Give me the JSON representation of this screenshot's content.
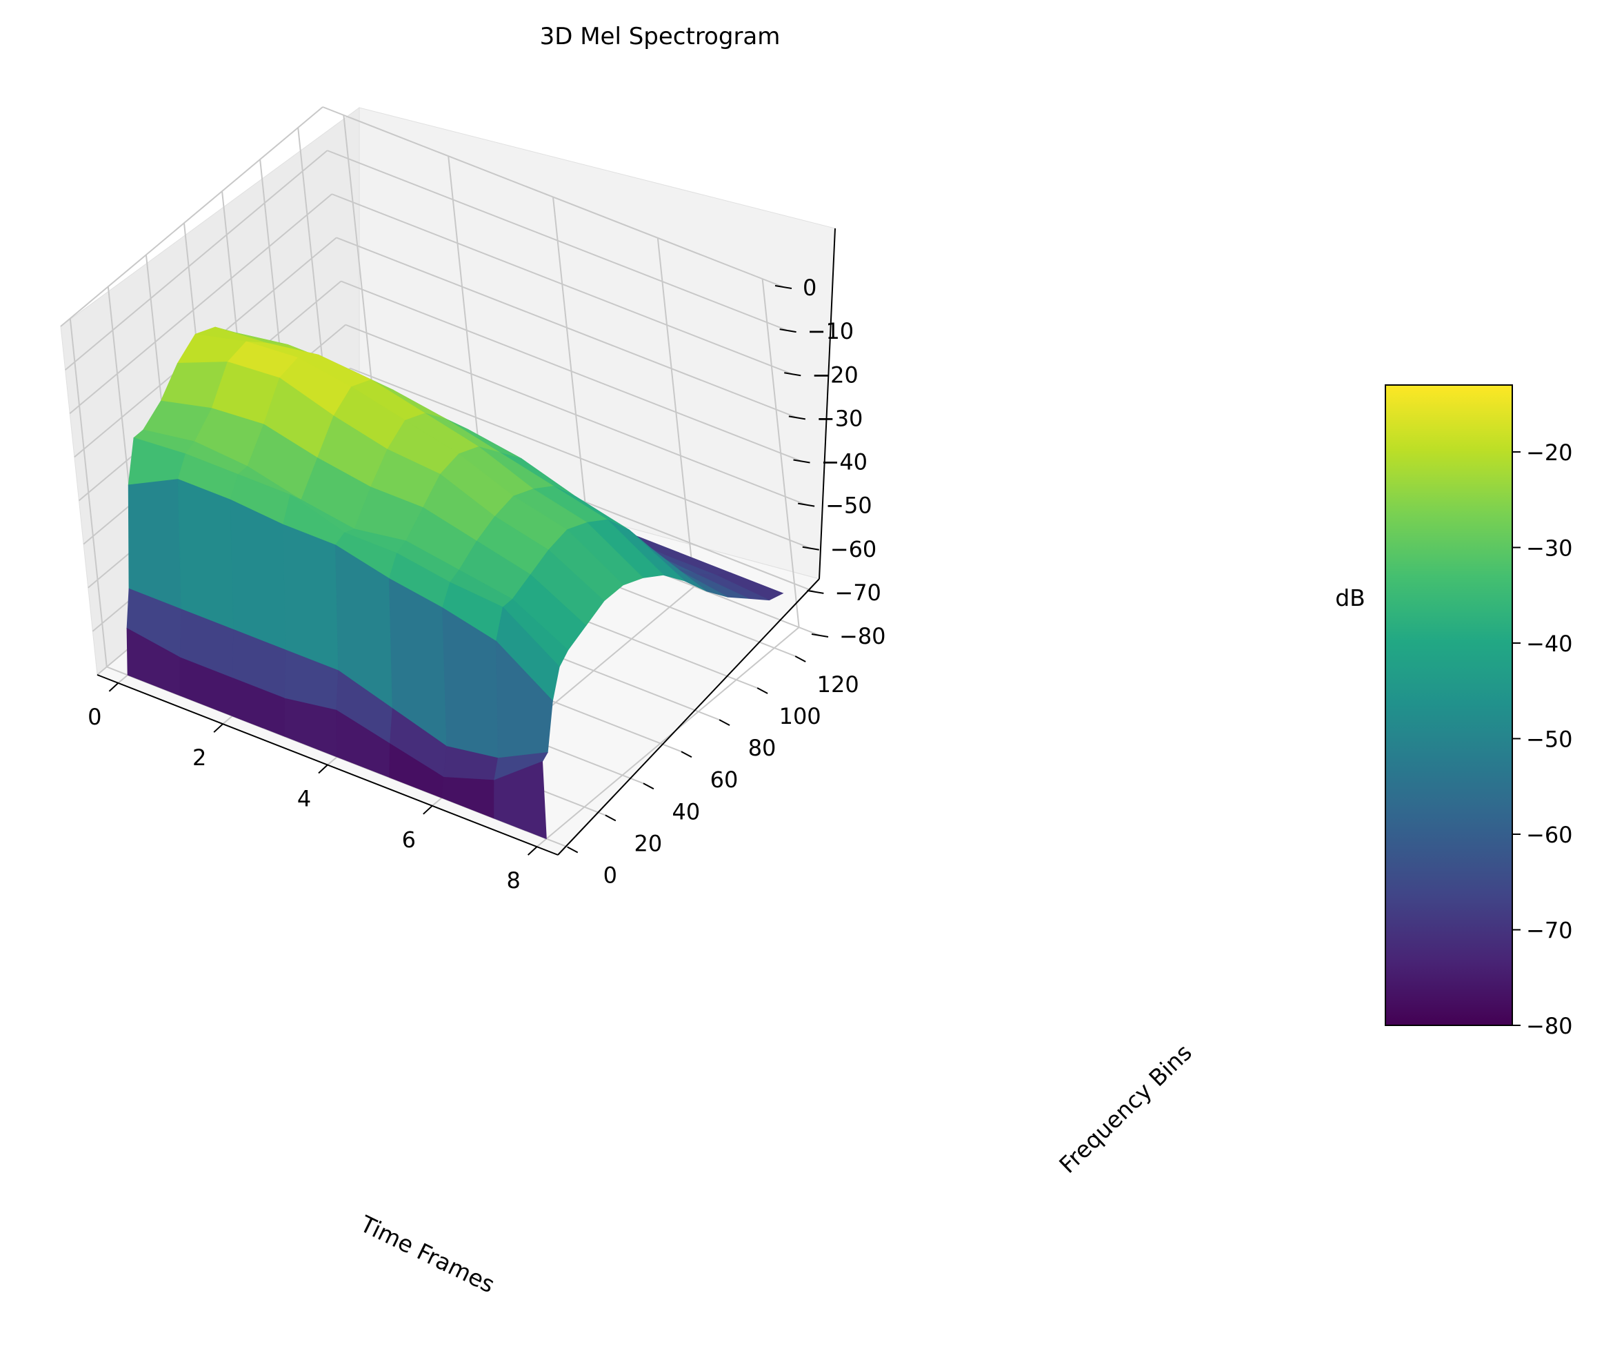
{
  "chart_data": {
    "type": "surface3d",
    "title": "3D Mel Spectrogram",
    "xlabel": "Time Frames",
    "ylabel": "Frequency Bins",
    "zlabel": "dB",
    "colormap": "viridis",
    "xlim": [
      -0.4,
      8.4
    ],
    "ylim": [
      -5,
      133
    ],
    "zlim": [
      -80,
      0
    ],
    "x_ticks": [
      0,
      2,
      4,
      6,
      8
    ],
    "y_ticks": [
      0,
      20,
      40,
      60,
      80,
      100,
      120
    ],
    "z_ticks": [
      0,
      -10,
      -20,
      -30,
      -40,
      -50,
      -60,
      -70,
      -80
    ],
    "x_tick_labels": [
      "0",
      "2",
      "4",
      "6",
      "8"
    ],
    "y_tick_labels": [
      "0",
      "20",
      "40",
      "60",
      "80",
      "100",
      "120"
    ],
    "z_tick_labels": [
      "0",
      "−10",
      "−20",
      "−30",
      "−40",
      "−50",
      "−60",
      "−70",
      "−80"
    ],
    "time_frames": [
      0,
      1,
      2,
      3,
      4,
      5,
      6,
      7,
      8
    ],
    "frequency_bins": [
      0,
      2,
      5,
      10,
      15,
      20,
      30,
      40,
      50,
      60,
      70,
      80,
      90,
      100,
      110,
      120,
      127
    ],
    "values_db": [
      [
        -80,
        -70,
        -62,
        -40,
        -31,
        -31,
        -28,
        -23,
        -20,
        -22,
        -27,
        -32,
        -40,
        -52,
        -60,
        -66,
        -70
      ],
      [
        -80,
        -72,
        -62,
        -34,
        -30,
        -29,
        -25,
        -18,
        -17,
        -21,
        -25,
        -33,
        -41,
        -51,
        -60,
        -66,
        -70
      ],
      [
        -80,
        -72,
        -62,
        -34,
        -30,
        -30,
        -24,
        -17,
        -16,
        -19,
        -25,
        -31,
        -42,
        -52,
        -61,
        -66,
        -70
      ],
      [
        -80,
        -72,
        -62,
        -35,
        -30,
        -33,
        -27,
        -21,
        -18,
        -20,
        -26,
        -33,
        -42,
        -53,
        -61,
        -66,
        -70
      ],
      [
        -80,
        -70,
        -62,
        -35,
        -34,
        -35,
        -29,
        -24,
        -21,
        -23,
        -28,
        -34,
        -43,
        -54,
        -62,
        -67,
        -70
      ],
      [
        -80,
        -73,
        -66,
        -38,
        -34,
        -33,
        -29,
        -25,
        -24,
        -26,
        -31,
        -36,
        -45,
        -55,
        -62,
        -67,
        -70
      ],
      [
        -80,
        -76,
        -70,
        -40,
        -36,
        -35,
        -32,
        -30,
        -29,
        -31,
        -34,
        -40,
        -48,
        -57,
        -63,
        -68,
        -70
      ],
      [
        -80,
        -72,
        -68,
        -43,
        -37,
        -37,
        -35,
        -33,
        -32,
        -34,
        -37,
        -43,
        -51,
        -59,
        -64,
        -68,
        -70
      ],
      [
        -80,
        -63,
        -62,
        -52,
        -46,
        -44,
        -42,
        -40,
        -40,
        -42,
        -45,
        -50,
        -56,
        -61,
        -65,
        -69,
        -70
      ]
    ],
    "colorbar": {
      "range": [
        -80,
        -13
      ],
      "ticks": [
        -20,
        -30,
        -40,
        -50,
        -60,
        -70,
        -80
      ],
      "tick_labels": [
        "−20",
        "−30",
        "−40",
        "−50",
        "−60",
        "−70",
        "−80"
      ]
    },
    "grid": true
  }
}
